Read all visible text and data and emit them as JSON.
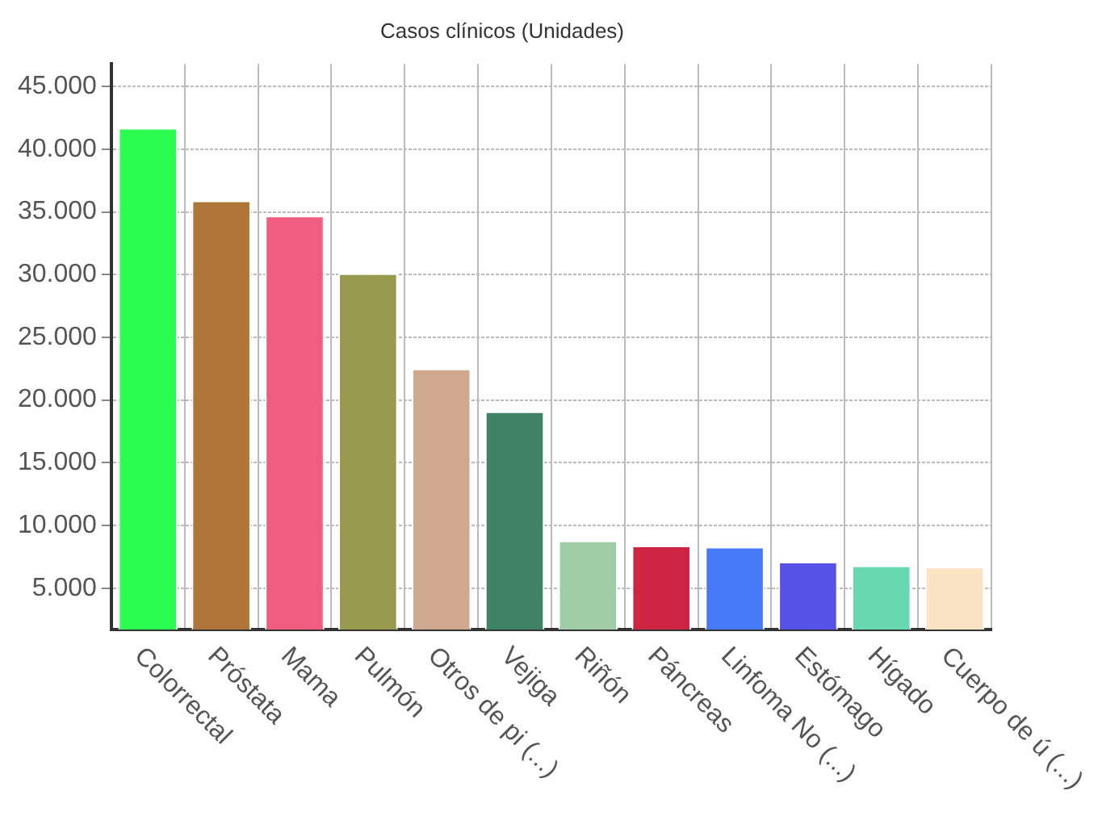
{
  "chart_data": {
    "type": "bar",
    "title": "Casos clínicos (Unidades)",
    "categories": [
      "Colorrectal",
      "Próstata",
      "Mama",
      "Pulmón",
      "Otros de pi (...)",
      "Vejiga",
      "Riñón",
      "Páncreas",
      "Linfoma No (...)",
      "Estómago",
      "Hígado",
      "Cuerpo de ú (...)"
    ],
    "values": [
      41700,
      35900,
      34700,
      30100,
      22500,
      19100,
      8800,
      8400,
      8300,
      7100,
      6800,
      6700
    ],
    "colors": [
      "#2afc50",
      "#b07538",
      "#ef5e7e",
      "#979a4c",
      "#cfa88e",
      "#3f8266",
      "#9ecda6",
      "#cd2442",
      "#4679f7",
      "#5652e8",
      "#68d8b0",
      "#f8e4c3"
    ],
    "ylim": [
      1700,
      46800
    ],
    "yticks": [
      {
        "value": 5000,
        "label": "5.000"
      },
      {
        "value": 10000,
        "label": "10.000"
      },
      {
        "value": 15000,
        "label": "15.000"
      },
      {
        "value": 20000,
        "label": "20.000"
      },
      {
        "value": 25000,
        "label": "25.000"
      },
      {
        "value": 30000,
        "label": "30.000"
      },
      {
        "value": 35000,
        "label": "35.000"
      },
      {
        "value": 40000,
        "label": "40.000"
      },
      {
        "value": 45000,
        "label": "45.000"
      }
    ],
    "grid": true,
    "legend": false
  }
}
